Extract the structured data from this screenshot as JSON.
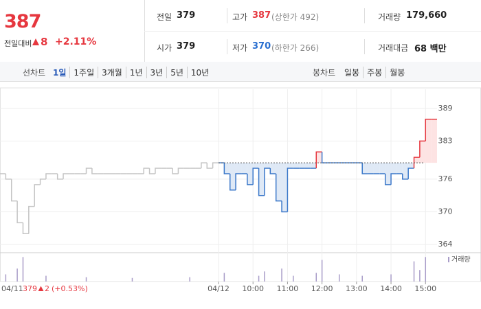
{
  "header": {
    "price": "387",
    "change_label": "전일대비",
    "change": "8",
    "change_rate": "+2.11%"
  },
  "stats": [
    {
      "label": "전일",
      "value": "379"
    },
    {
      "label": "고가",
      "value": "387",
      "note": "(상한가 492)"
    },
    {
      "label": "거래량",
      "value": "179,660"
    },
    {
      "label": "시가",
      "value": "379"
    },
    {
      "label": "저가",
      "value": "370",
      "note": "(하한가 266)"
    },
    {
      "label": "거래대금",
      "value": "68 백만"
    }
  ],
  "tabs": {
    "line_label": "선차트",
    "line_periods": [
      "1일",
      "1주일",
      "3개월",
      "1년",
      "3년",
      "5년",
      "10년"
    ],
    "candle_label": "봉차트",
    "candle_periods": [
      "일봉",
      "주봉",
      "월봉"
    ]
  },
  "prev_day": {
    "close": "379",
    "change": "2",
    "change_rate": "(+0.53%)"
  },
  "chart_data": {
    "type": "line",
    "xlim": [
      1,
      77
    ],
    "ylim": [
      362.5,
      392.5
    ],
    "yticks": [
      364,
      370,
      376,
      383,
      389
    ],
    "xticks": [
      {
        "value": 39,
        "label": "04/12"
      },
      {
        "value": 45,
        "label": "10:00"
      },
      {
        "value": 51,
        "label": "11:00"
      },
      {
        "value": 57,
        "label": "12:00"
      },
      {
        "value": 63,
        "label": "13:00"
      },
      {
        "value": 69,
        "label": "14:00"
      },
      {
        "value": 75,
        "label": "15:00"
      }
    ],
    "first_label": "04/11",
    "baseline": 379,
    "grid": true,
    "series": [
      {
        "color": "#c4c4c4",
        "x": [
          1,
          2,
          3,
          4,
          5,
          6,
          7,
          8,
          9,
          10,
          11,
          12,
          13,
          14,
          15,
          16,
          17,
          18,
          19,
          20,
          21,
          22,
          23,
          24,
          25,
          26,
          27,
          28,
          29,
          30,
          31,
          32,
          33,
          34,
          35,
          36,
          37,
          38
        ],
        "values": [
          377,
          376,
          372,
          368,
          366,
          371,
          375,
          376,
          377,
          377,
          376,
          377,
          377,
          377,
          377,
          378,
          377,
          377,
          377,
          377,
          377,
          377,
          377,
          377,
          377,
          378,
          377,
          378,
          378,
          378,
          377,
          378,
          378,
          378,
          378,
          379,
          378,
          379
        ]
      },
      {
        "color": "#3a77c9",
        "up_color": "#e6373f",
        "x": [
          39,
          40,
          41,
          42,
          43,
          44,
          45,
          46,
          47,
          48,
          49,
          50,
          51,
          52,
          53,
          54,
          55,
          56,
          57,
          58,
          59,
          60,
          61,
          62,
          63,
          64,
          65,
          66,
          67,
          68,
          69,
          70,
          71,
          72,
          73,
          74,
          75,
          76
        ],
        "values": [
          379,
          377,
          374,
          377,
          377,
          375,
          378,
          373,
          378,
          377,
          372,
          370,
          378,
          378,
          378,
          378,
          378,
          381,
          379,
          379,
          379,
          379,
          379,
          379,
          379,
          377,
          377,
          377,
          377,
          375,
          377,
          377,
          376,
          378,
          380,
          383,
          387,
          387
        ]
      }
    ],
    "volume": {
      "name": "거래량",
      "color": "#a89cc8",
      "y2lim": [
        0,
        20000
      ],
      "x": [
        2,
        4,
        5,
        9,
        16,
        24,
        34,
        40,
        46,
        47,
        50,
        52,
        56,
        57,
        60,
        64,
        69,
        73,
        74,
        75
      ],
      "values": [
        5000,
        9000,
        17000,
        4000,
        3000,
        2500,
        3000,
        6000,
        4000,
        7000,
        9000,
        4000,
        6000,
        15000,
        5000,
        4000,
        5000,
        14000,
        8000,
        17000
      ]
    }
  }
}
